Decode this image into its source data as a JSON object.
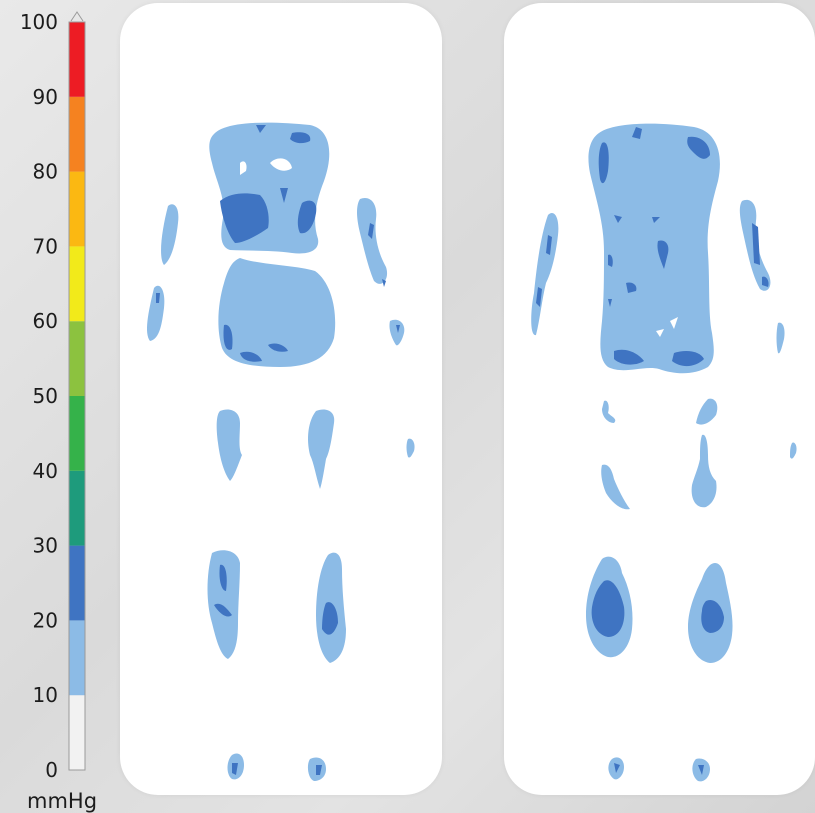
{
  "chart_data": {
    "type": "heatmap",
    "unit": "mmHg",
    "scale": {
      "min": 0,
      "max": 100,
      "ticks": [
        "0",
        "10",
        "20",
        "30",
        "40",
        "50",
        "60",
        "70",
        "80",
        "90",
        "100"
      ],
      "bands": [
        {
          "from": 0,
          "to": 10,
          "color": "#f2f2f2"
        },
        {
          "from": 10,
          "to": 20,
          "color": "#8cbbe6"
        },
        {
          "from": 20,
          "to": 30,
          "color": "#3f74c2"
        },
        {
          "from": 30,
          "to": 40,
          "color": "#1e9b7c"
        },
        {
          "from": 40,
          "to": 50,
          "color": "#35b24a"
        },
        {
          "from": 50,
          "to": 60,
          "color": "#8cc23f"
        },
        {
          "from": 60,
          "to": 70,
          "color": "#f2ea1a"
        },
        {
          "from": 70,
          "to": 80,
          "color": "#fbb812"
        },
        {
          "from": 80,
          "to": 90,
          "color": "#f58220"
        },
        {
          "from": 90,
          "to": 100,
          "color": "#ed1c24"
        }
      ]
    },
    "maps": [
      {
        "panel": "left",
        "levels_shown": [
          "10-20",
          "20-30"
        ]
      },
      {
        "panel": "right",
        "levels_shown": [
          "10-20",
          "20-30"
        ]
      }
    ]
  },
  "colors": {
    "low": "#8cbbe6",
    "mid": "#3f74c2",
    "none": "#ffffff"
  }
}
